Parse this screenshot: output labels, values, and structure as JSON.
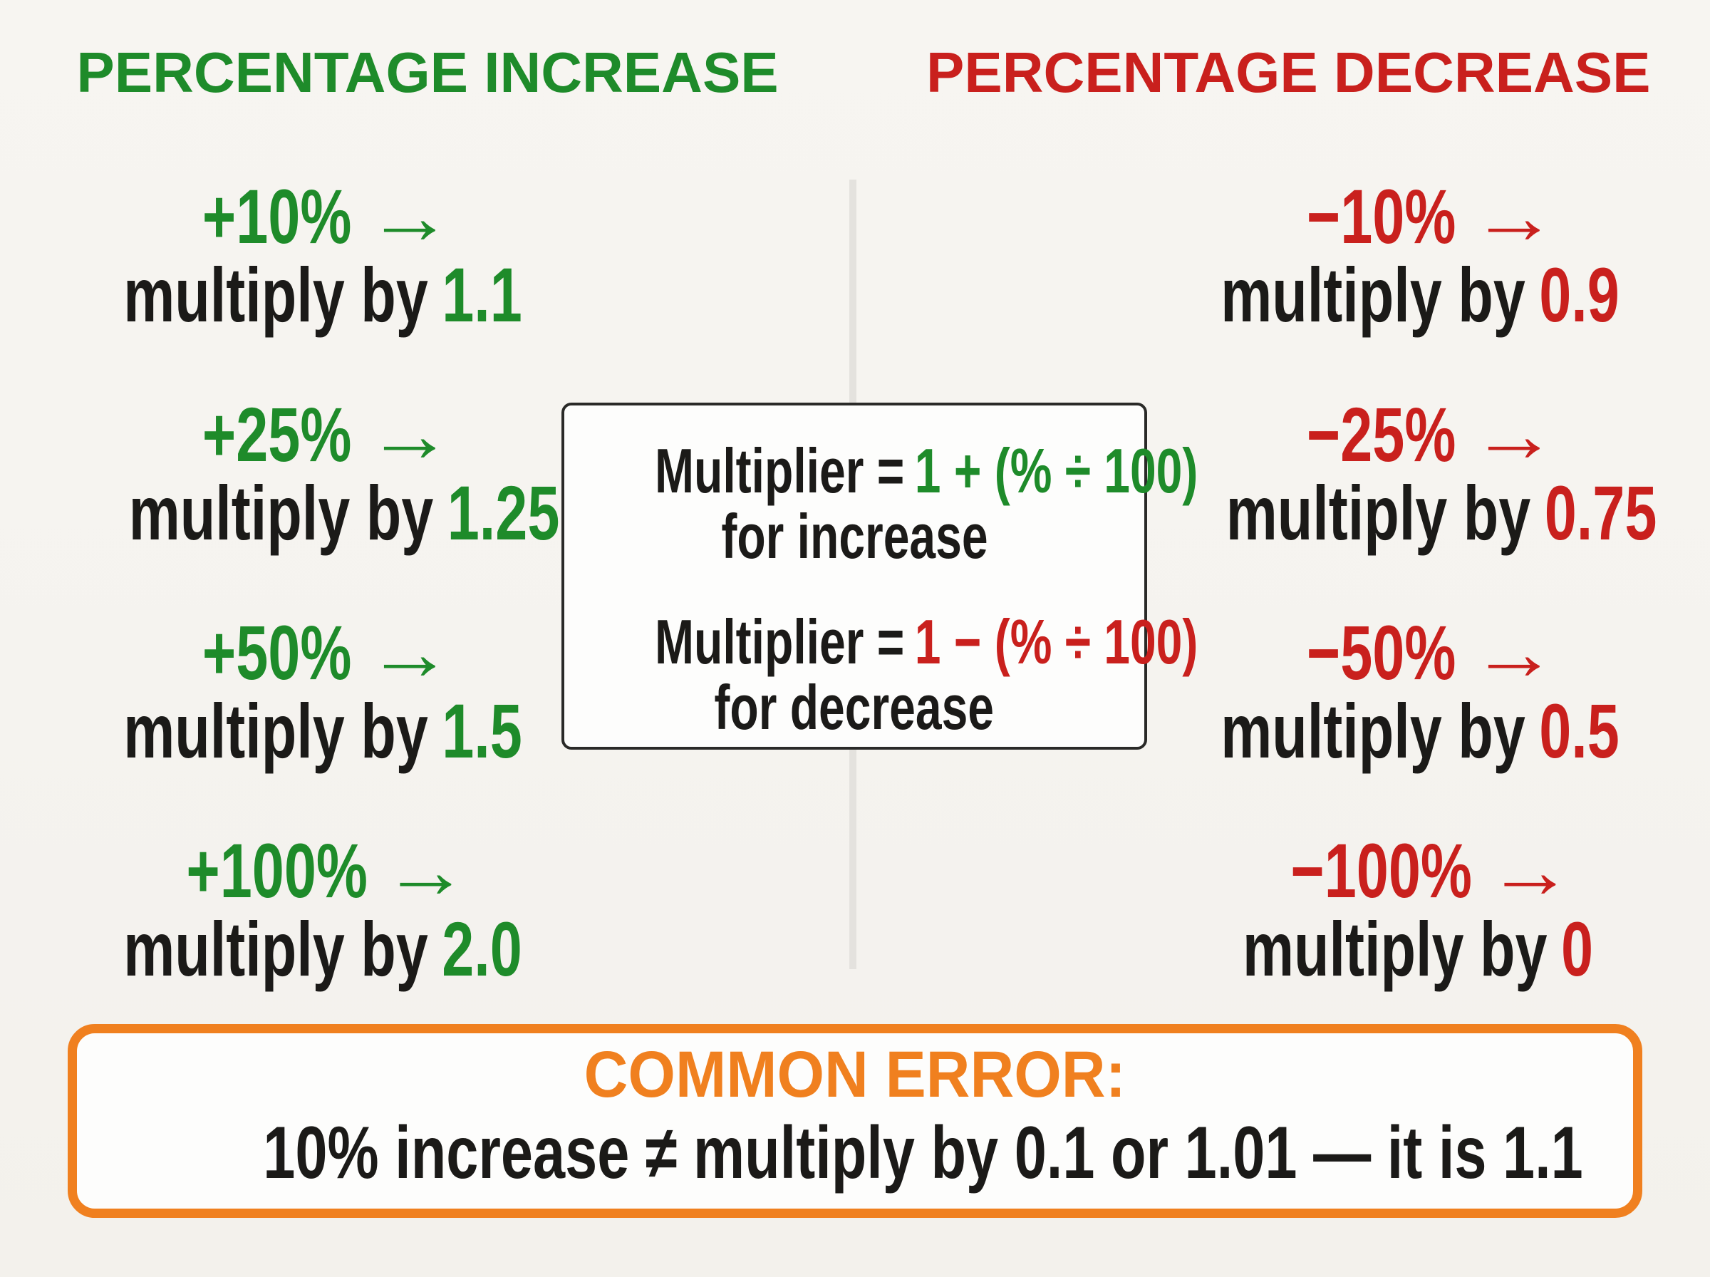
{
  "colors": {
    "bg": "#f5f3ef",
    "panel": "#fdfdfc",
    "ink": "#1b1a18",
    "green": "#1e8b2a",
    "red": "#c9201d",
    "orange": "#f0801f",
    "divider": "#e4e2de",
    "box_border": "#2a2a28"
  },
  "headers": {
    "increase": "PERCENTAGE INCREASE",
    "decrease": "PERCENTAGE DECREASE"
  },
  "glyphs": {
    "arrow": "→"
  },
  "increase_rows": [
    {
      "percent": "+10%",
      "label": "multiply by",
      "value": "1.1"
    },
    {
      "percent": "+25%",
      "label": "multiply by",
      "value": "1.25"
    },
    {
      "percent": "+50%",
      "label": "multiply by",
      "value": "1.5"
    },
    {
      "percent": "+100%",
      "label": "multiply by",
      "value": "2.0"
    }
  ],
  "decrease_rows": [
    {
      "percent": "−10%",
      "label": "multiply by",
      "value": "0.9"
    },
    {
      "percent": "−25%",
      "label": "multiply by",
      "value": "0.75"
    },
    {
      "percent": "−50%",
      "label": "multiply by",
      "value": "0.5"
    },
    {
      "percent": "−100%",
      "label": "multiply by",
      "value": "0"
    }
  ],
  "formula_box": {
    "increase": {
      "lhs": "Multiplier =",
      "expr": "1 + (% ÷ 100)",
      "caption": "for increase"
    },
    "decrease": {
      "lhs": "Multiplier =",
      "expr": "1 − (% ÷ 100)",
      "caption": "for decrease"
    }
  },
  "common_error": {
    "title": "COMMON ERROR:",
    "text": "10% increase ≠ multiply by 0.1 or 1.01 — it is 1.1"
  }
}
